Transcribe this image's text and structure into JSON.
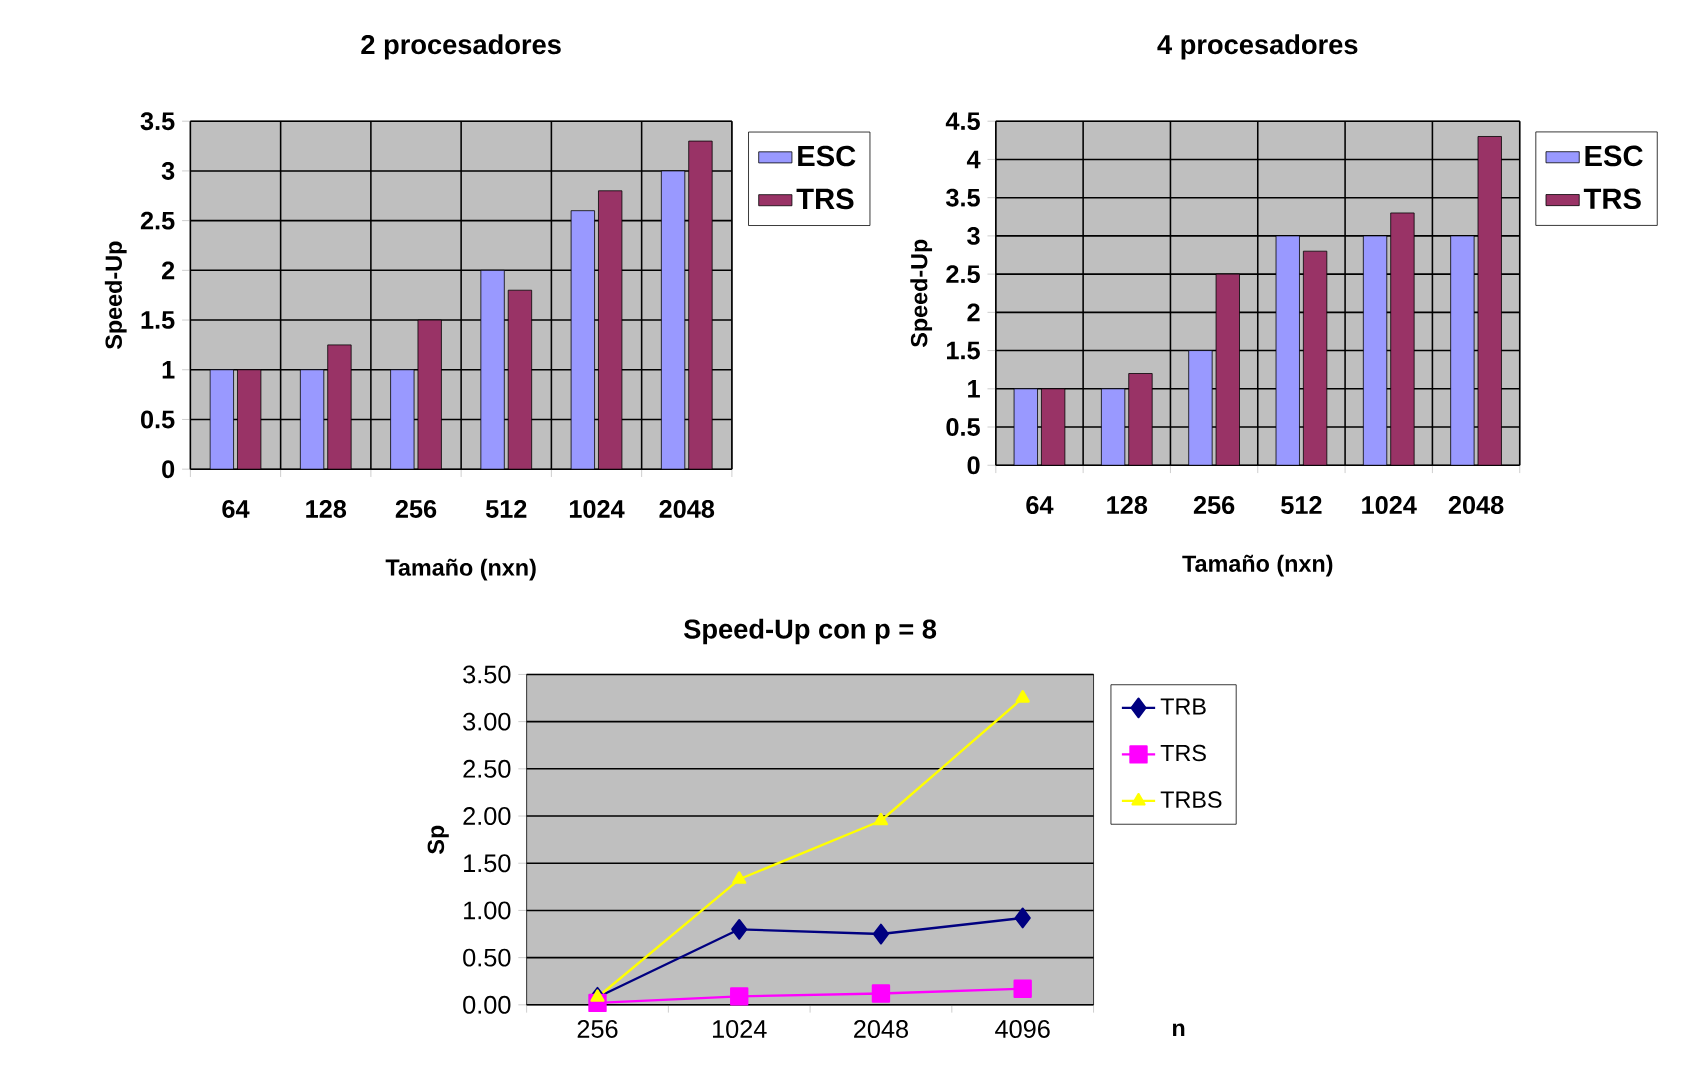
{
  "chart_data": [
    {
      "type": "bar",
      "title": "2 procesadores",
      "xlabel": "Tamaño (nxn)",
      "ylabel": "Speed-Up",
      "categories": [
        "64",
        "128",
        "256",
        "512",
        "1024",
        "2048"
      ],
      "series": [
        {
          "name": "ESC",
          "color": "#9999ff",
          "values": [
            1,
            1,
            1,
            2,
            2.6,
            3
          ]
        },
        {
          "name": "TRS",
          "color": "#993366",
          "values": [
            1,
            1.25,
            1.5,
            1.8,
            2.8,
            3.3
          ]
        }
      ],
      "ylim": [
        0,
        3.5
      ],
      "yticks": [
        0,
        0.5,
        1,
        1.5,
        2,
        2.5,
        3,
        3.5
      ],
      "grid": true,
      "legend": "right"
    },
    {
      "type": "bar",
      "title": "4 procesadores",
      "xlabel": "Tamaño (nxn)",
      "ylabel": "Speed-Up",
      "categories": [
        "64",
        "128",
        "256",
        "512",
        "1024",
        "2048"
      ],
      "series": [
        {
          "name": "ESC",
          "color": "#9999ff",
          "values": [
            1,
            1,
            1.5,
            3,
            3,
            3
          ]
        },
        {
          "name": "TRS",
          "color": "#993366",
          "values": [
            1,
            1.2,
            2.5,
            2.8,
            3.3,
            4.3
          ]
        }
      ],
      "ylim": [
        0,
        4.5
      ],
      "yticks": [
        0,
        0.5,
        1,
        1.5,
        2,
        2.5,
        3,
        3.5,
        4,
        4.5
      ],
      "grid": true,
      "legend": "right"
    },
    {
      "type": "line",
      "title": "Speed-Up con p = 8",
      "xlabel": "n",
      "ylabel": "Sp",
      "categories": [
        "256",
        "1024",
        "2048",
        "4096"
      ],
      "series": [
        {
          "name": "TRB",
          "color": "#000080",
          "marker": "diamond",
          "values": [
            0.08,
            0.8,
            0.75,
            0.92
          ]
        },
        {
          "name": "TRS",
          "color": "#ff00ff",
          "marker": "square",
          "values": [
            0.02,
            0.09,
            0.12,
            0.17
          ]
        },
        {
          "name": "TRBS",
          "color": "#ffff00",
          "marker": "triangle",
          "values": [
            0.08,
            1.33,
            1.95,
            3.25
          ]
        }
      ],
      "ylim": [
        0,
        3.5
      ],
      "yticks": [
        {
          "value": 0,
          "label": "0.00"
        },
        {
          "value": 0.5,
          "label": "0.50"
        },
        {
          "value": 1,
          "label": "1.00"
        },
        {
          "value": 1.5,
          "label": "1.50"
        },
        {
          "value": 2,
          "label": "2.00"
        },
        {
          "value": 2.5,
          "label": "2.50"
        },
        {
          "value": 3,
          "label": "3.00"
        },
        {
          "value": 3.5,
          "label": "3.50"
        }
      ],
      "grid": "y",
      "legend": "right"
    }
  ]
}
